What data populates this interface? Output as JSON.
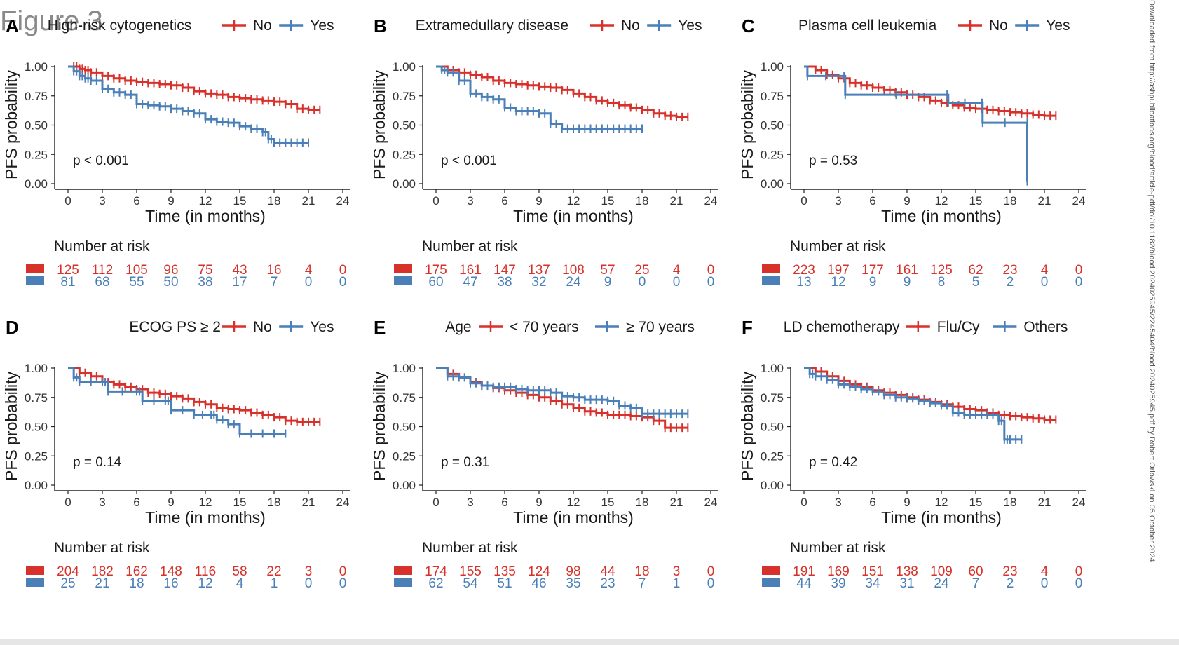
{
  "figure_label": "Figure 3",
  "side_note": "Downloaded from http://ashpublications.org/blood/article-pdf/doi/10.1182/blood.2024025945/2245404/blood.2024025945.pdf by Robert Orlowski on 05 October 2024",
  "colors": {
    "no": "#d7312b",
    "yes": "#4a7fb8"
  },
  "chart_data": [
    {
      "type": "line",
      "letter": "A",
      "legend_title": "High-risk cytogenetics",
      "xlabel": "Time (in months)",
      "ylabel": "PFS probability",
      "xticks": [
        0,
        3,
        6,
        9,
        12,
        15,
        18,
        21,
        24
      ],
      "yticks": [
        "0.00",
        "0.25",
        "0.50",
        "0.75",
        "1.00"
      ],
      "xlim": [
        0,
        24
      ],
      "ylim": [
        0,
        1
      ],
      "pvalue": "p < 0.001",
      "risk_title": "Number at risk",
      "series": [
        {
          "name": "No",
          "key": "no",
          "x": [
            0,
            0.5,
            1,
            1.5,
            2,
            3,
            4,
            5,
            6,
            7,
            8,
            9,
            10,
            11,
            12,
            13,
            14,
            15,
            16,
            17,
            18,
            19,
            20,
            21,
            22
          ],
          "y": [
            1,
            1,
            0.98,
            0.97,
            0.95,
            0.92,
            0.9,
            0.88,
            0.87,
            0.86,
            0.85,
            0.84,
            0.82,
            0.79,
            0.77,
            0.76,
            0.74,
            0.73,
            0.72,
            0.71,
            0.7,
            0.68,
            0.64,
            0.63,
            0.63
          ],
          "risk": [
            125,
            112,
            105,
            96,
            75,
            43,
            16,
            4,
            0
          ]
        },
        {
          "name": "Yes",
          "key": "yes",
          "x": [
            0,
            0.5,
            1,
            1.5,
            2,
            3,
            4,
            5,
            6,
            7,
            8,
            9,
            10,
            11,
            12,
            13,
            14,
            15,
            16,
            17,
            17.5,
            18,
            19,
            20,
            21
          ],
          "y": [
            1,
            0.96,
            0.92,
            0.9,
            0.88,
            0.81,
            0.78,
            0.76,
            0.68,
            0.67,
            0.66,
            0.64,
            0.62,
            0.6,
            0.55,
            0.53,
            0.52,
            0.49,
            0.47,
            0.44,
            0.38,
            0.35,
            0.35,
            0.35,
            0.35
          ],
          "risk": [
            81,
            68,
            55,
            50,
            38,
            17,
            7,
            0,
            0
          ]
        }
      ]
    },
    {
      "type": "line",
      "letter": "B",
      "legend_title": "Extramedullary disease",
      "xlabel": "Time (in months)",
      "ylabel": "PFS probability",
      "xticks": [
        0,
        3,
        6,
        9,
        12,
        15,
        18,
        21,
        24
      ],
      "yticks": [
        "0.00",
        "0.25",
        "0.50",
        "0.75",
        "1.00"
      ],
      "xlim": [
        0,
        24
      ],
      "ylim": [
        0,
        1
      ],
      "pvalue": "p < 0.001",
      "risk_title": "Number at risk",
      "series": [
        {
          "name": "No",
          "key": "no",
          "x": [
            0,
            1,
            2,
            3,
            4,
            5,
            6,
            7,
            8,
            9,
            10,
            11,
            12,
            13,
            14,
            15,
            16,
            17,
            18,
            19,
            20,
            21,
            22
          ],
          "y": [
            1,
            0.97,
            0.95,
            0.93,
            0.91,
            0.88,
            0.86,
            0.85,
            0.84,
            0.83,
            0.82,
            0.8,
            0.77,
            0.74,
            0.71,
            0.69,
            0.67,
            0.65,
            0.63,
            0.6,
            0.58,
            0.57,
            0.57
          ],
          "risk": [
            175,
            161,
            147,
            137,
            108,
            57,
            25,
            4,
            0
          ]
        },
        {
          "name": "Yes",
          "key": "yes",
          "x": [
            0,
            0.5,
            1,
            2,
            3,
            4,
            5,
            6,
            7,
            8,
            9,
            10,
            11,
            12,
            13,
            14,
            15,
            16,
            17,
            18
          ],
          "y": [
            1,
            0.97,
            0.95,
            0.88,
            0.77,
            0.74,
            0.72,
            0.65,
            0.62,
            0.62,
            0.6,
            0.51,
            0.47,
            0.47,
            0.47,
            0.47,
            0.47,
            0.47,
            0.47,
            0.47
          ],
          "risk": [
            60,
            47,
            38,
            32,
            24,
            9,
            0,
            0,
            0
          ]
        }
      ]
    },
    {
      "type": "line",
      "letter": "C",
      "legend_title": "Plasma cell leukemia",
      "xlabel": "Time (in months)",
      "ylabel": "PFS probability",
      "xticks": [
        0,
        3,
        6,
        9,
        12,
        15,
        18,
        21,
        24
      ],
      "yticks": [
        "0.00",
        "0.25",
        "0.50",
        "0.75",
        "1.00"
      ],
      "xlim": [
        0,
        24
      ],
      "ylim": [
        0,
        1
      ],
      "pvalue": "p = 0.53",
      "risk_title": "Number at risk",
      "series": [
        {
          "name": "No",
          "key": "no",
          "x": [
            0,
            1,
            2,
            3,
            4,
            5,
            6,
            7,
            8,
            9,
            10,
            11,
            12,
            13,
            14,
            15,
            16,
            17,
            18,
            19,
            20,
            21,
            22
          ],
          "y": [
            1,
            0.97,
            0.93,
            0.9,
            0.86,
            0.84,
            0.82,
            0.8,
            0.78,
            0.76,
            0.74,
            0.71,
            0.69,
            0.67,
            0.65,
            0.64,
            0.63,
            0.62,
            0.61,
            0.6,
            0.59,
            0.58,
            0.58
          ],
          "risk": [
            223,
            197,
            177,
            161,
            125,
            62,
            23,
            4,
            0
          ]
        },
        {
          "name": "Yes",
          "key": "yes",
          "x": [
            0,
            0.3,
            3.5,
            3.6,
            12.5,
            12.6,
            15.5,
            15.6,
            19.5,
            19.5
          ],
          "y": [
            1,
            0.92,
            0.92,
            0.76,
            0.76,
            0.69,
            0.69,
            0.52,
            0.52,
            0.02
          ],
          "risk": [
            13,
            12,
            9,
            9,
            8,
            5,
            2,
            0,
            0
          ]
        }
      ]
    },
    {
      "type": "line",
      "letter": "D",
      "legend_title": "ECOG PS ≥ 2",
      "xlabel": "Time (in months)",
      "ylabel": "PFS probability",
      "xticks": [
        0,
        3,
        6,
        9,
        12,
        15,
        18,
        21,
        24
      ],
      "yticks": [
        "0.00",
        "0.25",
        "0.50",
        "0.75",
        "1.00"
      ],
      "xlim": [
        0,
        24
      ],
      "ylim": [
        0,
        1
      ],
      "pvalue": "p = 0.14",
      "risk_title": "Number at risk",
      "series": [
        {
          "name": "No",
          "key": "no",
          "x": [
            0,
            1,
            2,
            3,
            4,
            5,
            6,
            7,
            8,
            9,
            10,
            11,
            12,
            13,
            14,
            15,
            16,
            17,
            18,
            19,
            20,
            21,
            22
          ],
          "y": [
            1,
            0.96,
            0.93,
            0.88,
            0.86,
            0.84,
            0.82,
            0.79,
            0.78,
            0.76,
            0.74,
            0.71,
            0.69,
            0.66,
            0.65,
            0.64,
            0.62,
            0.6,
            0.58,
            0.55,
            0.54,
            0.54,
            0.54
          ],
          "risk": [
            204,
            182,
            162,
            148,
            116,
            58,
            22,
            3,
            0
          ]
        },
        {
          "name": "Yes",
          "key": "yes",
          "x": [
            0,
            0.5,
            1,
            3,
            3.5,
            6,
            6.5,
            8.5,
            9,
            11,
            12.5,
            13,
            14,
            15,
            17,
            19
          ],
          "y": [
            1,
            0.92,
            0.88,
            0.88,
            0.8,
            0.8,
            0.72,
            0.72,
            0.64,
            0.6,
            0.6,
            0.56,
            0.52,
            0.44,
            0.44,
            0.44
          ],
          "risk": [
            25,
            21,
            18,
            16,
            12,
            4,
            1,
            0,
            0
          ]
        }
      ]
    },
    {
      "type": "line",
      "letter": "E",
      "legend_title": "Age",
      "xlabel": "Time (in months)",
      "ylabel": "PFS probability",
      "xticks": [
        0,
        3,
        6,
        9,
        12,
        15,
        18,
        21,
        24
      ],
      "yticks": [
        "0.00",
        "0.25",
        "0.50",
        "0.75",
        "1.00"
      ],
      "xlim": [
        0,
        24
      ],
      "ylim": [
        0,
        1
      ],
      "pvalue": "p = 0.31",
      "risk_title": "Number at risk",
      "series": [
        {
          "name": "< 70 years",
          "key": "no",
          "x": [
            0,
            1,
            2,
            3,
            4,
            5,
            6,
            7,
            8,
            9,
            10,
            11,
            12,
            13,
            14,
            15,
            16,
            17,
            18,
            19,
            20,
            21,
            22
          ],
          "y": [
            1,
            0.95,
            0.92,
            0.88,
            0.85,
            0.83,
            0.81,
            0.79,
            0.77,
            0.75,
            0.72,
            0.69,
            0.66,
            0.63,
            0.62,
            0.6,
            0.6,
            0.59,
            0.58,
            0.55,
            0.49,
            0.49,
            0.49
          ],
          "risk": [
            174,
            155,
            135,
            124,
            98,
            44,
            18,
            3,
            0
          ]
        },
        {
          "name": "≥ 70 years",
          "key": "yes",
          "x": [
            0,
            1,
            2,
            3,
            4,
            5,
            6,
            7,
            8,
            9,
            10,
            11,
            12,
            13,
            14,
            15,
            16,
            17,
            18,
            19,
            20,
            21,
            22
          ],
          "y": [
            1,
            0.93,
            0.92,
            0.87,
            0.85,
            0.84,
            0.84,
            0.82,
            0.81,
            0.81,
            0.79,
            0.76,
            0.75,
            0.73,
            0.73,
            0.72,
            0.68,
            0.66,
            0.61,
            0.61,
            0.61,
            0.61,
            0.61
          ],
          "risk": [
            62,
            54,
            51,
            46,
            35,
            23,
            7,
            1,
            0
          ]
        }
      ]
    },
    {
      "type": "line",
      "letter": "F",
      "legend_title": "LD chemotherapy",
      "xlabel": "Time (in months)",
      "ylabel": "PFS probability",
      "xticks": [
        0,
        3,
        6,
        9,
        12,
        15,
        18,
        21,
        24
      ],
      "yticks": [
        "0.00",
        "0.25",
        "0.50",
        "0.75",
        "1.00"
      ],
      "xlim": [
        0,
        24
      ],
      "ylim": [
        0,
        1
      ],
      "pvalue": "p = 0.42",
      "risk_title": "Number at risk",
      "series": [
        {
          "name": "Flu/Cy",
          "key": "no",
          "x": [
            0,
            1,
            2,
            3,
            4,
            5,
            6,
            7,
            8,
            9,
            10,
            11,
            12,
            13,
            14,
            15,
            16,
            17,
            18,
            19,
            20,
            21,
            22
          ],
          "y": [
            1,
            0.97,
            0.93,
            0.89,
            0.86,
            0.84,
            0.81,
            0.79,
            0.77,
            0.75,
            0.73,
            0.71,
            0.69,
            0.67,
            0.65,
            0.64,
            0.62,
            0.6,
            0.59,
            0.58,
            0.57,
            0.56,
            0.56
          ],
          "risk": [
            191,
            169,
            151,
            138,
            109,
            60,
            23,
            4,
            0
          ]
        },
        {
          "name": "Others",
          "key": "yes",
          "x": [
            0,
            0.5,
            1,
            2,
            3,
            4,
            5,
            6,
            7,
            8,
            9,
            10,
            11,
            12,
            13,
            14,
            15,
            16,
            17,
            17.5,
            18,
            19
          ],
          "y": [
            1,
            0.95,
            0.93,
            0.9,
            0.86,
            0.84,
            0.82,
            0.8,
            0.77,
            0.75,
            0.74,
            0.72,
            0.7,
            0.68,
            0.62,
            0.6,
            0.6,
            0.6,
            0.55,
            0.39,
            0.39,
            0.39
          ],
          "risk": [
            44,
            39,
            34,
            31,
            24,
            7,
            2,
            0,
            0
          ]
        }
      ]
    }
  ]
}
